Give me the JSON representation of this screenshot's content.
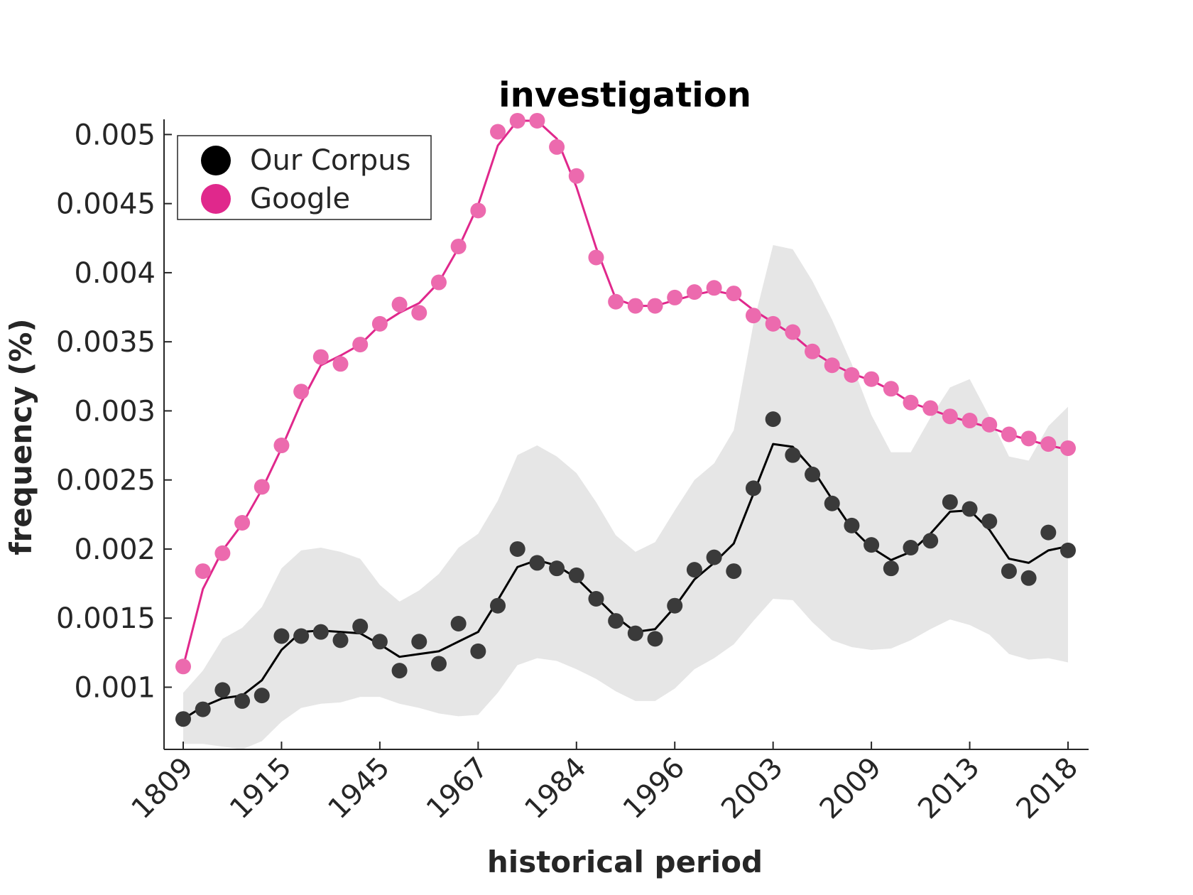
{
  "chart_data": {
    "type": "line",
    "title": "investigation",
    "xlabel": "historical period",
    "ylabel": "frequency (%)",
    "x_tick_labels": [
      "1809",
      "1915",
      "1945",
      "1967",
      "1984",
      "1996",
      "2003",
      "2009",
      "2013",
      "2018"
    ],
    "y_ticks": [
      0.001,
      0.0015,
      0.002,
      0.0025,
      0.003,
      0.0035,
      0.004,
      0.0045,
      0.005
    ],
    "y_tick_labels": [
      "0.001",
      "0.0015",
      "0.002",
      "0.0025",
      "0.003",
      "0.0035",
      "0.004",
      "0.0045",
      "0.005"
    ],
    "ylim": [
      0.00055,
      0.00511
    ],
    "grid": false,
    "legend_position": "top-left",
    "legend": [
      "Our Corpus",
      "Google"
    ],
    "series": [
      {
        "name": "Our Corpus",
        "color": "#000000",
        "point_color": "#3a3a3a",
        "points": [
          0.00077,
          0.00084,
          0.00098,
          0.0009,
          0.00094,
          0.00137,
          0.00137,
          0.0014,
          0.00134,
          0.00144,
          0.00133,
          0.00112,
          0.00133,
          0.00117,
          0.00146,
          0.00126,
          0.00159,
          0.002,
          0.0019,
          0.00186,
          0.00181,
          0.00164,
          0.00148,
          0.00139,
          0.00135,
          0.00159,
          0.00185,
          0.00194,
          0.00184,
          0.00244,
          0.00294,
          0.00268,
          0.00254,
          0.00233,
          0.00217,
          0.00203,
          0.00186,
          0.00201,
          0.00206,
          0.00234,
          0.00229,
          0.0022,
          0.00184,
          0.00179,
          0.00212,
          0.00199
        ],
        "smooth": [
          0.00077,
          0.00086,
          0.00092,
          0.00094,
          0.00105,
          0.00127,
          0.0014,
          0.00141,
          0.0014,
          0.00139,
          0.00131,
          0.00122,
          0.00124,
          0.00126,
          0.00133,
          0.0014,
          0.00163,
          0.00187,
          0.00192,
          0.00188,
          0.00179,
          0.00165,
          0.00151,
          0.0014,
          0.00142,
          0.00158,
          0.00178,
          0.0019,
          0.00204,
          0.0024,
          0.00276,
          0.00274,
          0.00258,
          0.00236,
          0.00215,
          0.00201,
          0.00192,
          0.00198,
          0.00211,
          0.00227,
          0.00228,
          0.00214,
          0.00193,
          0.0019,
          0.00199,
          0.00202
        ],
        "band_upper": [
          0.00096,
          0.00112,
          0.00135,
          0.00143,
          0.00158,
          0.00186,
          0.00199,
          0.00201,
          0.00198,
          0.00193,
          0.00174,
          0.00162,
          0.0017,
          0.00182,
          0.00201,
          0.00211,
          0.00235,
          0.00268,
          0.00275,
          0.00267,
          0.00255,
          0.00234,
          0.0021,
          0.00198,
          0.00205,
          0.00228,
          0.0025,
          0.00262,
          0.00286,
          0.00363,
          0.0042,
          0.00417,
          0.00394,
          0.00366,
          0.00334,
          0.00297,
          0.0027,
          0.0027,
          0.00295,
          0.00317,
          0.00323,
          0.00296,
          0.00267,
          0.00264,
          0.00289,
          0.00303
        ],
        "band_lower": [
          0.00059,
          0.00059,
          0.00057,
          0.00055,
          0.00061,
          0.00075,
          0.00085,
          0.00088,
          0.00089,
          0.00093,
          0.00093,
          0.00088,
          0.00085,
          0.00081,
          0.00079,
          0.0008,
          0.00096,
          0.00116,
          0.00121,
          0.00119,
          0.00113,
          0.00106,
          0.00097,
          0.0009,
          0.0009,
          0.00099,
          0.00113,
          0.00121,
          0.00131,
          0.00148,
          0.00164,
          0.00163,
          0.00147,
          0.00134,
          0.00129,
          0.00127,
          0.00128,
          0.00134,
          0.00142,
          0.00149,
          0.00145,
          0.00138,
          0.00124,
          0.0012,
          0.00121,
          0.00118
        ]
      },
      {
        "name": "Google",
        "color": "#e0288c",
        "point_color": "#ec6aae",
        "points": [
          0.00115,
          0.00184,
          0.00197,
          0.00219,
          0.00245,
          0.00275,
          0.00314,
          0.00339,
          0.00334,
          0.00348,
          0.00363,
          0.00377,
          0.00371,
          0.00393,
          0.00419,
          0.00445,
          0.00502,
          0.0051,
          0.0051,
          0.00491,
          0.0047,
          0.00411,
          0.00379,
          0.00376,
          0.00376,
          0.00382,
          0.00386,
          0.00389,
          0.00385,
          0.00369,
          0.00363,
          0.00357,
          0.00343,
          0.00333,
          0.00326,
          0.00323,
          0.00316,
          0.00306,
          0.00302,
          0.00296,
          0.00293,
          0.0029,
          0.00283,
          0.0028,
          0.00276,
          0.00273
        ],
        "smooth": [
          0.00115,
          0.00171,
          0.00199,
          0.00218,
          0.00243,
          0.00273,
          0.00306,
          0.00333,
          0.0034,
          0.00348,
          0.00362,
          0.00371,
          0.00378,
          0.00393,
          0.00418,
          0.00449,
          0.00492,
          0.0051,
          0.0051,
          0.00497,
          0.00462,
          0.00418,
          0.00381,
          0.00376,
          0.00376,
          0.0038,
          0.00384,
          0.00387,
          0.00384,
          0.00373,
          0.00364,
          0.00355,
          0.00343,
          0.00334,
          0.00327,
          0.00322,
          0.00315,
          0.00306,
          0.00301,
          0.00296,
          0.00292,
          0.00288,
          0.00283,
          0.00279,
          0.00275,
          0.00272
        ]
      }
    ]
  }
}
